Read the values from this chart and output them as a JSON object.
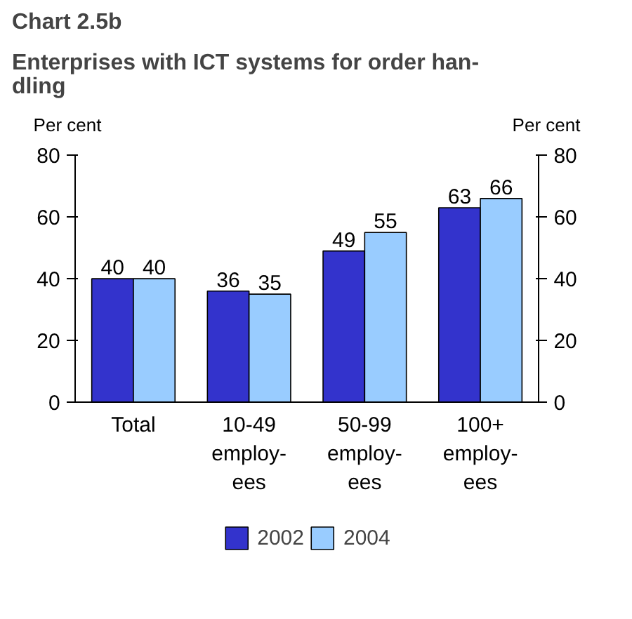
{
  "chart_data": {
    "type": "bar",
    "title": "Chart 2.5b",
    "subtitle": "Enterprises with ICT systems for order han-\ndling",
    "ylabel": "Per cent",
    "y2label": "Per cent",
    "categories": [
      "Total",
      "10-49\nemploy-\nees",
      "50-99\nemploy-\nees",
      "100+\nemploy-\nees"
    ],
    "series": [
      {
        "name": "2002",
        "color": "#3333cc",
        "values": [
          40,
          36,
          49,
          63
        ]
      },
      {
        "name": "2004",
        "color": "#99ccff",
        "values": [
          40,
          35,
          55,
          66
        ]
      }
    ],
    "ylim": [
      0,
      80
    ],
    "yticks": [
      0,
      20,
      40,
      60,
      80
    ],
    "y2lim": [
      0,
      80
    ],
    "y2ticks": [
      0,
      20,
      40,
      60,
      80
    ],
    "data_labels": true,
    "grid": false,
    "legend": "bottom"
  }
}
